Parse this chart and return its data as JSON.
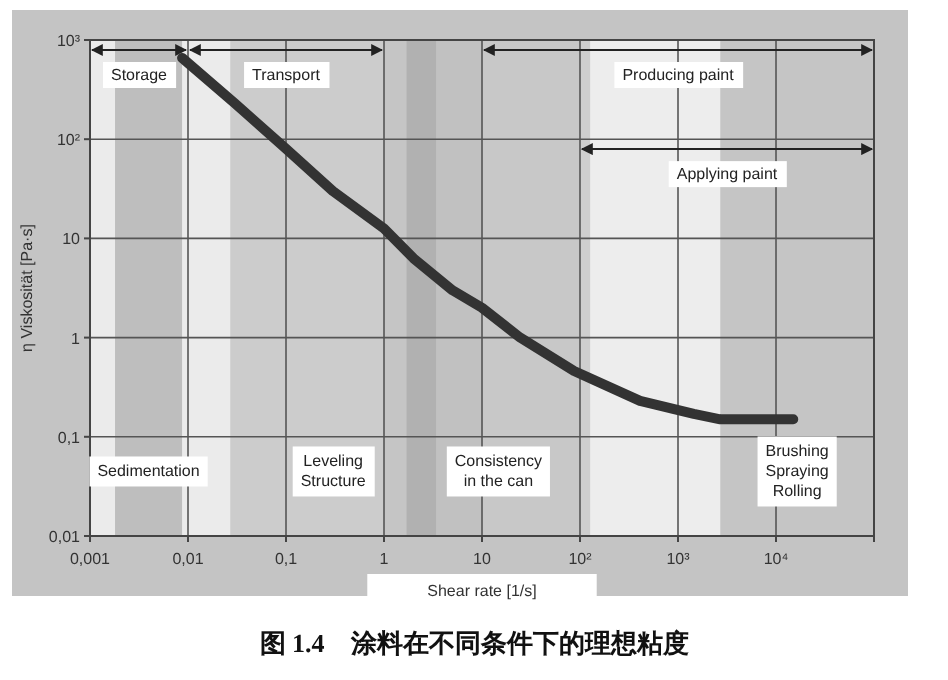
{
  "chart_data": {
    "type": "line",
    "xlabel": "Shear rate [1/s]",
    "ylabel": "η Viskosität [Pa·s]",
    "log": "xy",
    "grid": true,
    "marker": "none",
    "line_style": "solid",
    "xlim": [
      0.001,
      100000
    ],
    "ylim": [
      0.01,
      1000
    ],
    "xticks": [
      {
        "value": 0.001,
        "label": "0,001"
      },
      {
        "value": 0.01,
        "label": "0,01"
      },
      {
        "value": 0.1,
        "label": "0,1"
      },
      1,
      10,
      {
        "value": 100,
        "label": "10²"
      },
      {
        "value": 1000,
        "label": "10³"
      },
      {
        "value": 10000,
        "label": "10⁴"
      },
      {
        "value": 100000,
        "label": null
      }
    ],
    "yticks": [
      {
        "value": 0.01,
        "label": "0,01"
      },
      {
        "value": 0.1,
        "label": "0,1"
      },
      1,
      10,
      {
        "value": 100,
        "label": "10²"
      },
      {
        "value": 1000,
        "label": "10³"
      }
    ],
    "series": [
      {
        "color": "#333333",
        "x": [
          0.0087,
          0.03,
          0.1,
          0.3,
          1,
          2,
          5,
          10,
          24.5,
          87,
          410,
          1450,
          2700,
          15000
        ],
        "values": [
          660,
          230,
          80,
          30,
          12.6,
          6.3,
          3,
          2,
          1,
          0.46,
          0.23,
          0.17,
          0.15,
          0.15
        ]
      }
    ],
    "bands": [
      {
        "axis": "x",
        "from": 0.0018,
        "to": 0.0087,
        "color": "#8c8c8c",
        "label": "Sedimentation"
      },
      {
        "axis": "x",
        "from": 0.027,
        "to": 3.4,
        "color": "#a8a8a8",
        "label": "Leveling\nStructure"
      },
      {
        "axis": "x",
        "from": 1.7,
        "to": 127,
        "color": "#a0a0a0",
        "label": "Consistency\nin the can"
      },
      {
        "axis": "x",
        "from": 2700,
        "to": 100000,
        "color": "#8a8a8a",
        "label": "Brushing\nSpraying\nRolling"
      },
      {
        "axis": "x",
        "from": 0.001,
        "to": 0.01,
        "label": "Storage"
      },
      {
        "axis": "x",
        "from": 0.01,
        "to": 1,
        "label": "Transport"
      },
      {
        "axis": "x",
        "from": 10,
        "to": 100000,
        "label": "Producing paint"
      },
      {
        "axis": "x",
        "from": 100,
        "to": 100000,
        "label": "Applying paint"
      }
    ],
    "annotations": [
      "图 1.4　涂料在不同条件下的理想粘度"
    ]
  }
}
